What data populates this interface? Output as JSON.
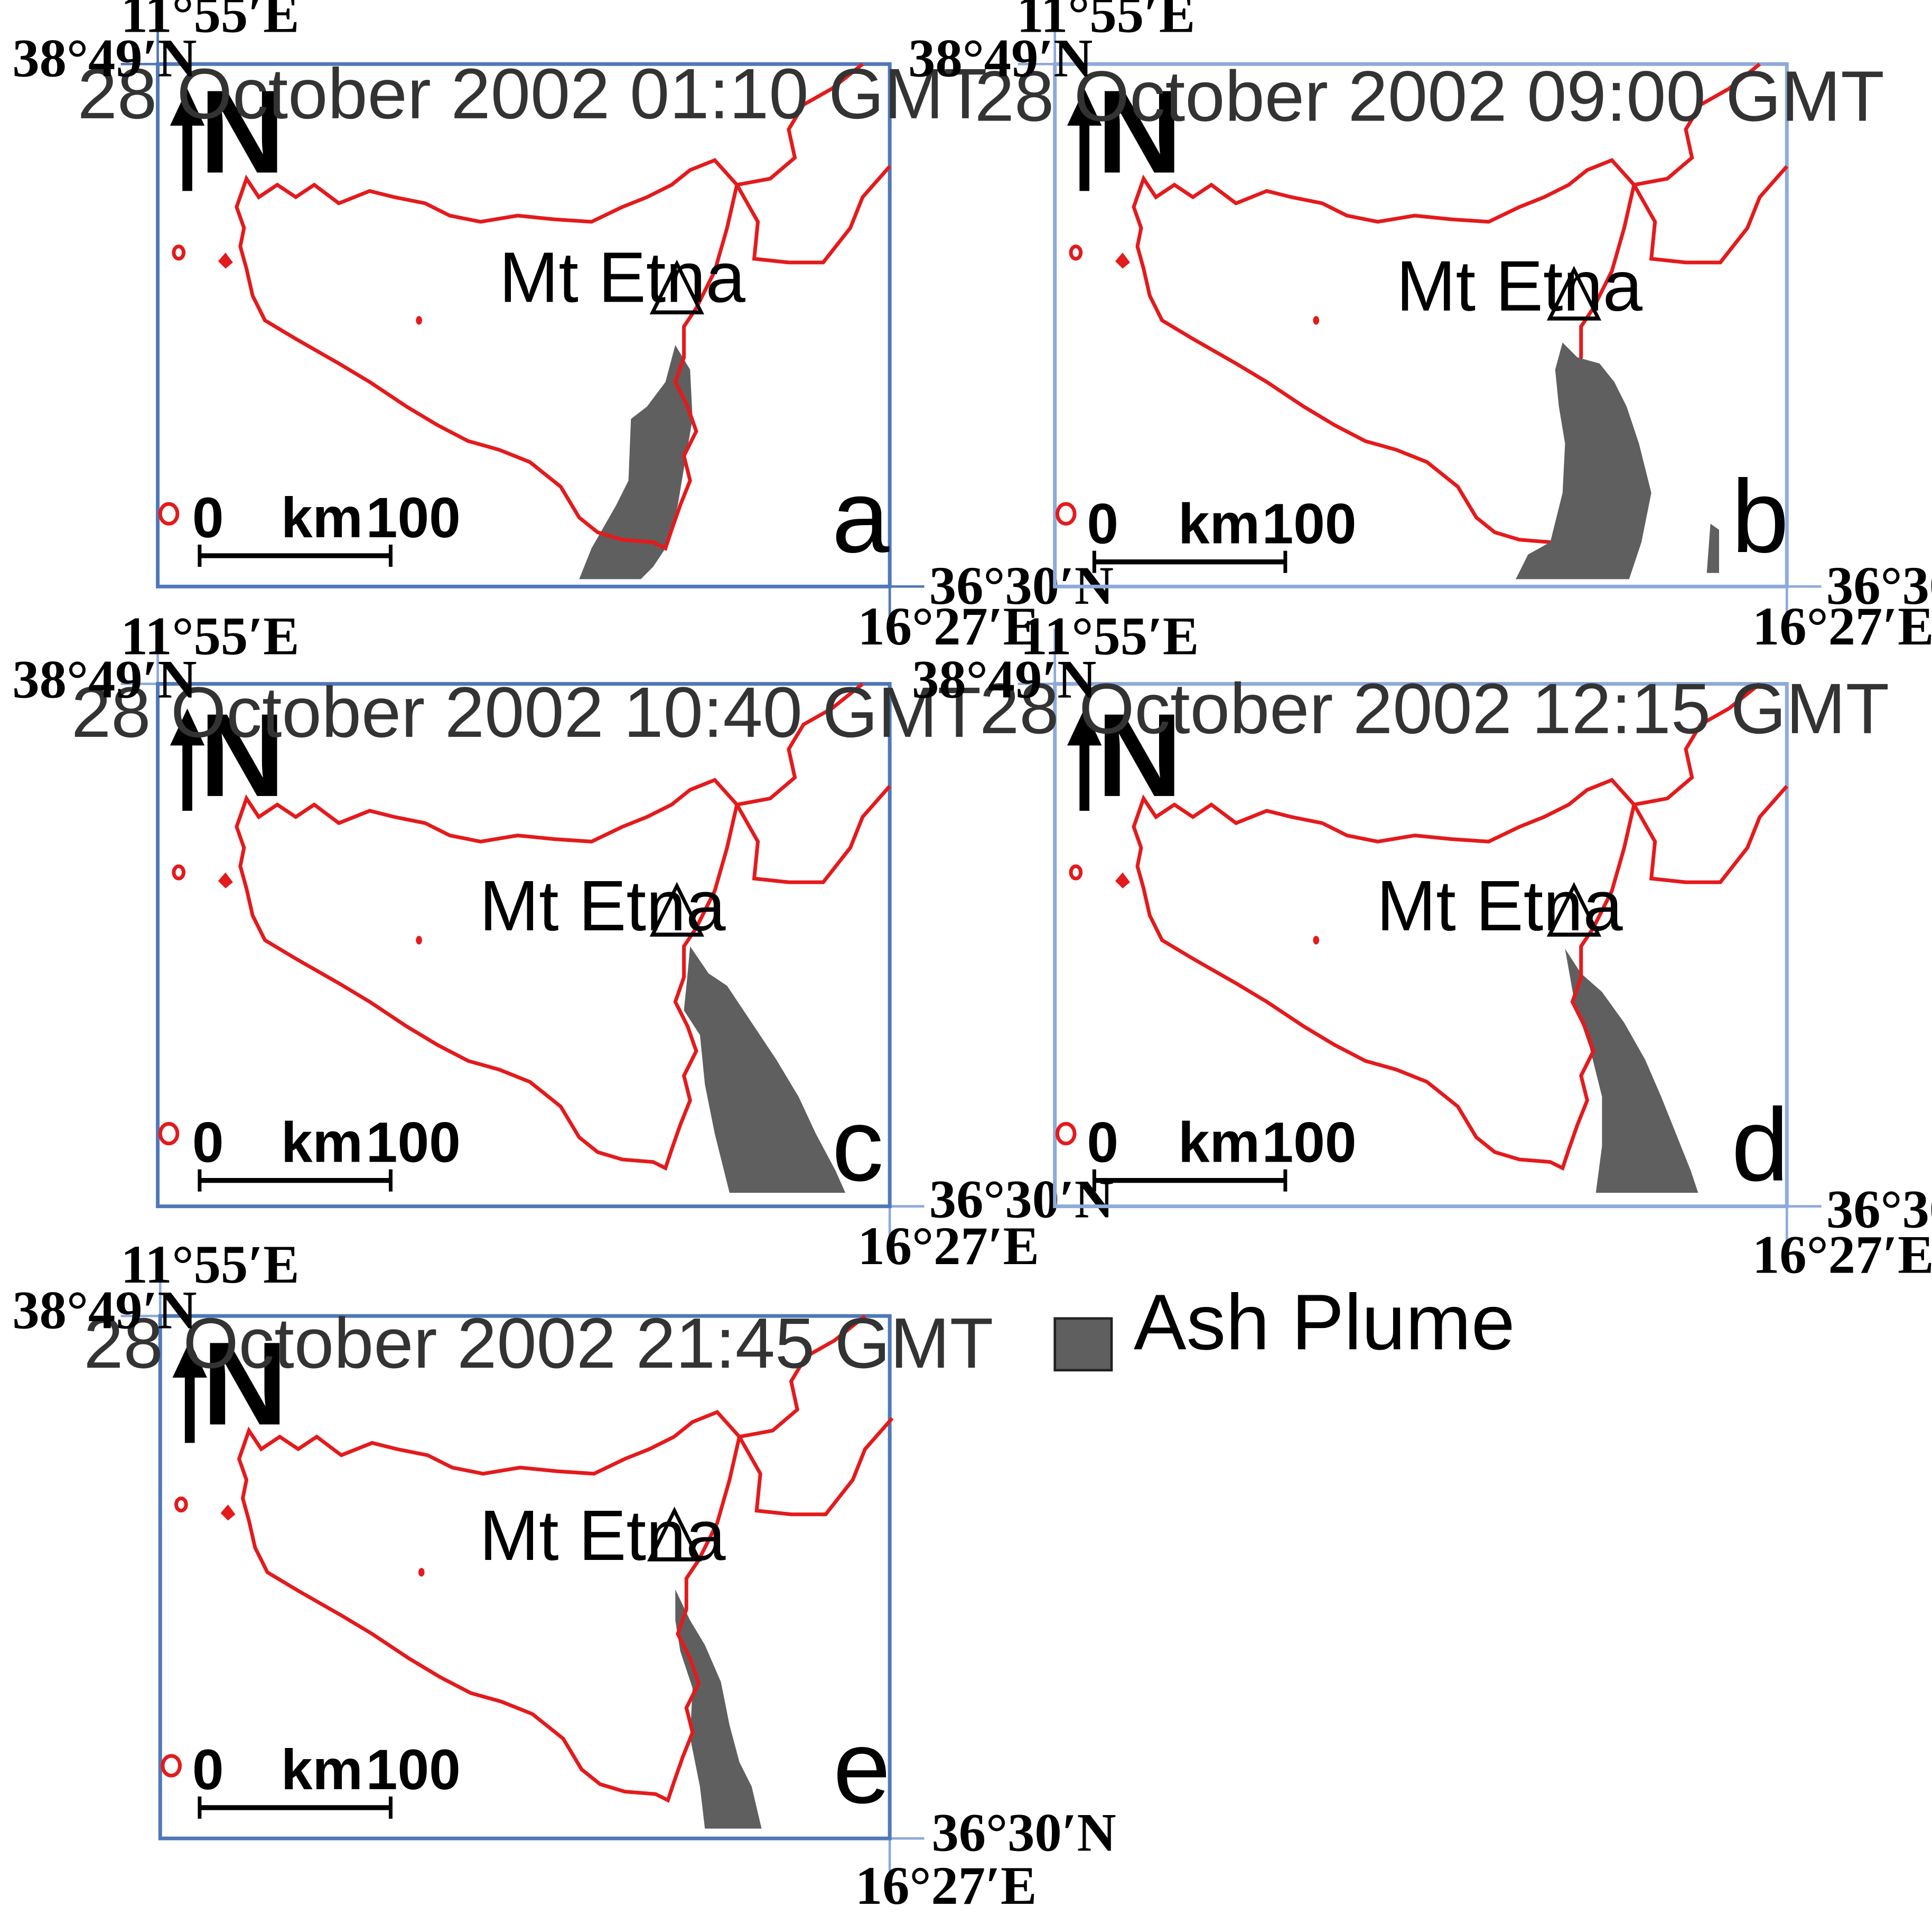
{
  "panels": [
    {
      "id": "a",
      "label": "a",
      "timestamp": "28 October 2002 01:10 GMT",
      "plume": "p-a"
    },
    {
      "id": "b",
      "label": "b",
      "timestamp": "28 October 2002 09:00 GMT",
      "plume": "p-b"
    },
    {
      "id": "c",
      "label": "c",
      "timestamp": "28 October 2002 10:40 GMT",
      "plume": "p-c"
    },
    {
      "id": "d",
      "label": "d",
      "timestamp": "28 October 2002 12:15 GMT",
      "plume": "p-d"
    },
    {
      "id": "e",
      "label": "e",
      "timestamp": "28 October 2002 21:45 GMT",
      "plume": "p-e"
    }
  ],
  "coordinates": {
    "west": "11°55′E",
    "east": "16°27′E",
    "north": "38°49′N",
    "south": "36°30′N"
  },
  "volcano": {
    "name": "Mt Etna",
    "symbol": "△"
  },
  "north_arrow": {
    "letter": "N"
  },
  "scale_bar": {
    "start": "0",
    "unit": "km",
    "end": "100"
  },
  "legend": {
    "label": "Ash Plume",
    "swatch_color": "#5f5f5f"
  },
  "colors": {
    "coastline": "#e41a1c",
    "frame": "#4f78b8",
    "plume": "#5f5f5f"
  }
}
